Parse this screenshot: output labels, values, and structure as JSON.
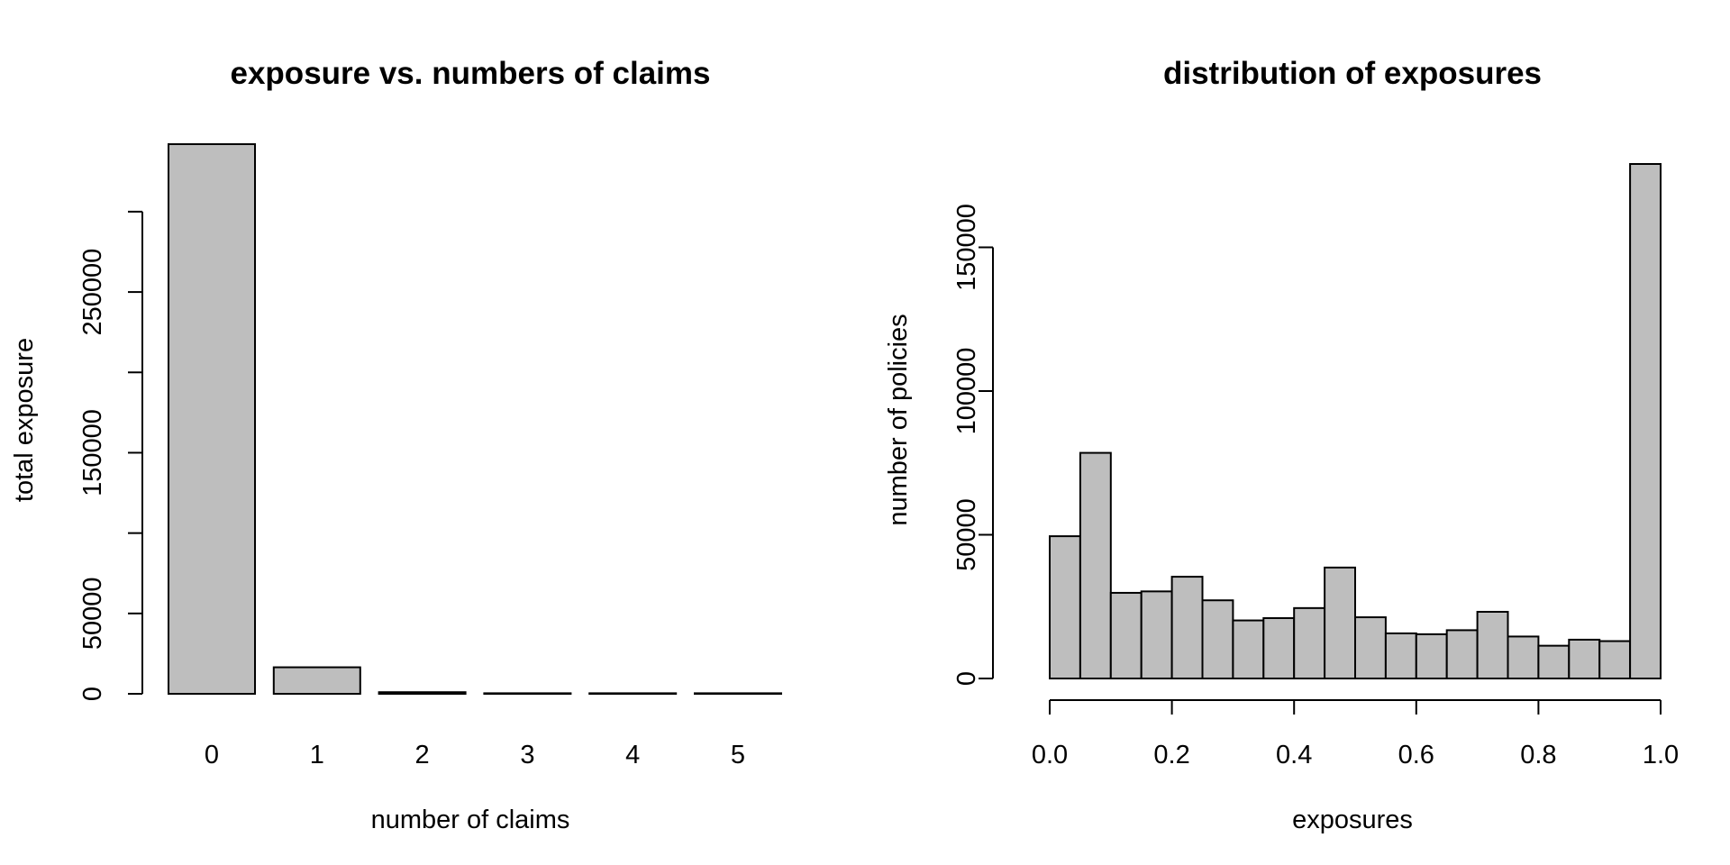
{
  "chart_data": [
    {
      "type": "bar",
      "title": "exposure vs. numbers of claims",
      "xlabel": "number of claims",
      "ylabel": "total exposure",
      "categories": [
        "0",
        "1",
        "2",
        "3",
        "4",
        "5"
      ],
      "values": [
        342000,
        16500,
        1000,
        60,
        10,
        5
      ],
      "ylim": [
        0,
        342000
      ],
      "yticks": [
        0,
        50000,
        100000,
        150000,
        200000,
        250000,
        300000
      ],
      "ytick_labels": [
        "0",
        "50000",
        "",
        "150000",
        "",
        "250000",
        ""
      ],
      "bar_color": "#bebebe",
      "grid": false
    },
    {
      "type": "histogram",
      "title": "distribution of exposures",
      "xlabel": "exposures",
      "ylabel": "number of policies",
      "bin_edges": [
        0.0,
        0.05,
        0.1,
        0.15,
        0.2,
        0.25,
        0.3,
        0.35,
        0.4,
        0.45,
        0.5,
        0.55,
        0.6,
        0.65,
        0.7,
        0.75,
        0.8,
        0.85,
        0.9,
        0.95,
        1.0
      ],
      "values": [
        49500,
        78500,
        29800,
        30300,
        35400,
        27200,
        20200,
        21000,
        24500,
        38600,
        21300,
        15700,
        15400,
        16800,
        23200,
        14600,
        11400,
        13500,
        13000,
        179000
      ],
      "ylim": [
        0,
        179000
      ],
      "yticks": [
        0,
        50000,
        100000,
        150000
      ],
      "ytick_labels": [
        "0",
        "50000",
        "100000",
        "150000"
      ],
      "xticks": [
        0.0,
        0.2,
        0.4,
        0.6,
        0.8,
        1.0
      ],
      "xtick_labels": [
        "0.0",
        "0.2",
        "0.4",
        "0.6",
        "0.8",
        "1.0"
      ],
      "bar_color": "#bebebe",
      "grid": false
    }
  ]
}
